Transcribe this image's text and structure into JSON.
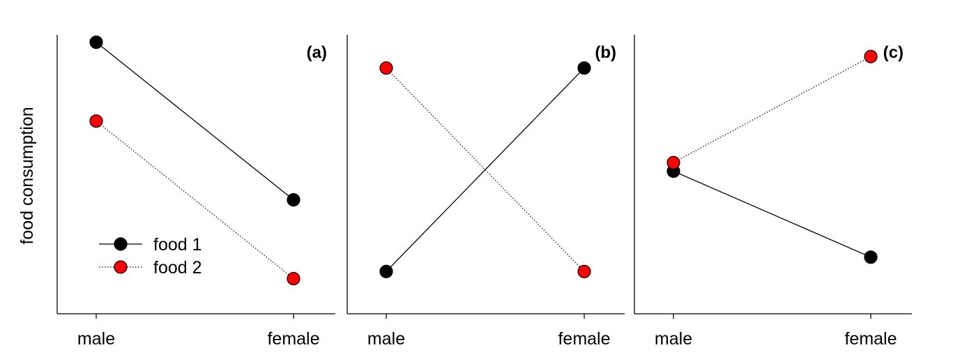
{
  "chart_data": {
    "type": "line",
    "ylabel": "food consumption",
    "categories": [
      "male",
      "female"
    ],
    "ylim": [
      0,
      10
    ],
    "series_styles": {
      "food 1": {
        "color": "#000000",
        "dash": "solid"
      },
      "food 2": {
        "color": "#ff0000",
        "dash": "dotted"
      }
    },
    "legend": {
      "placement": "lower-left",
      "panel": 0,
      "entries": [
        "food 1",
        "food 2"
      ]
    },
    "panels": [
      {
        "label": "(a)",
        "series": [
          {
            "name": "food 1",
            "values": [
              9.5,
              4.0
            ]
          },
          {
            "name": "food 2",
            "values": [
              6.75,
              1.25
            ]
          }
        ]
      },
      {
        "label": "(b)",
        "series": [
          {
            "name": "food 1",
            "values": [
              1.5,
              8.6
            ]
          },
          {
            "name": "food 2",
            "values": [
              8.6,
              1.5
            ]
          }
        ]
      },
      {
        "label": "(c)",
        "series": [
          {
            "name": "food 1",
            "values": [
              5.0,
              2.0
            ]
          },
          {
            "name": "food 2",
            "values": [
              5.3,
              9.0
            ]
          }
        ]
      }
    ]
  }
}
